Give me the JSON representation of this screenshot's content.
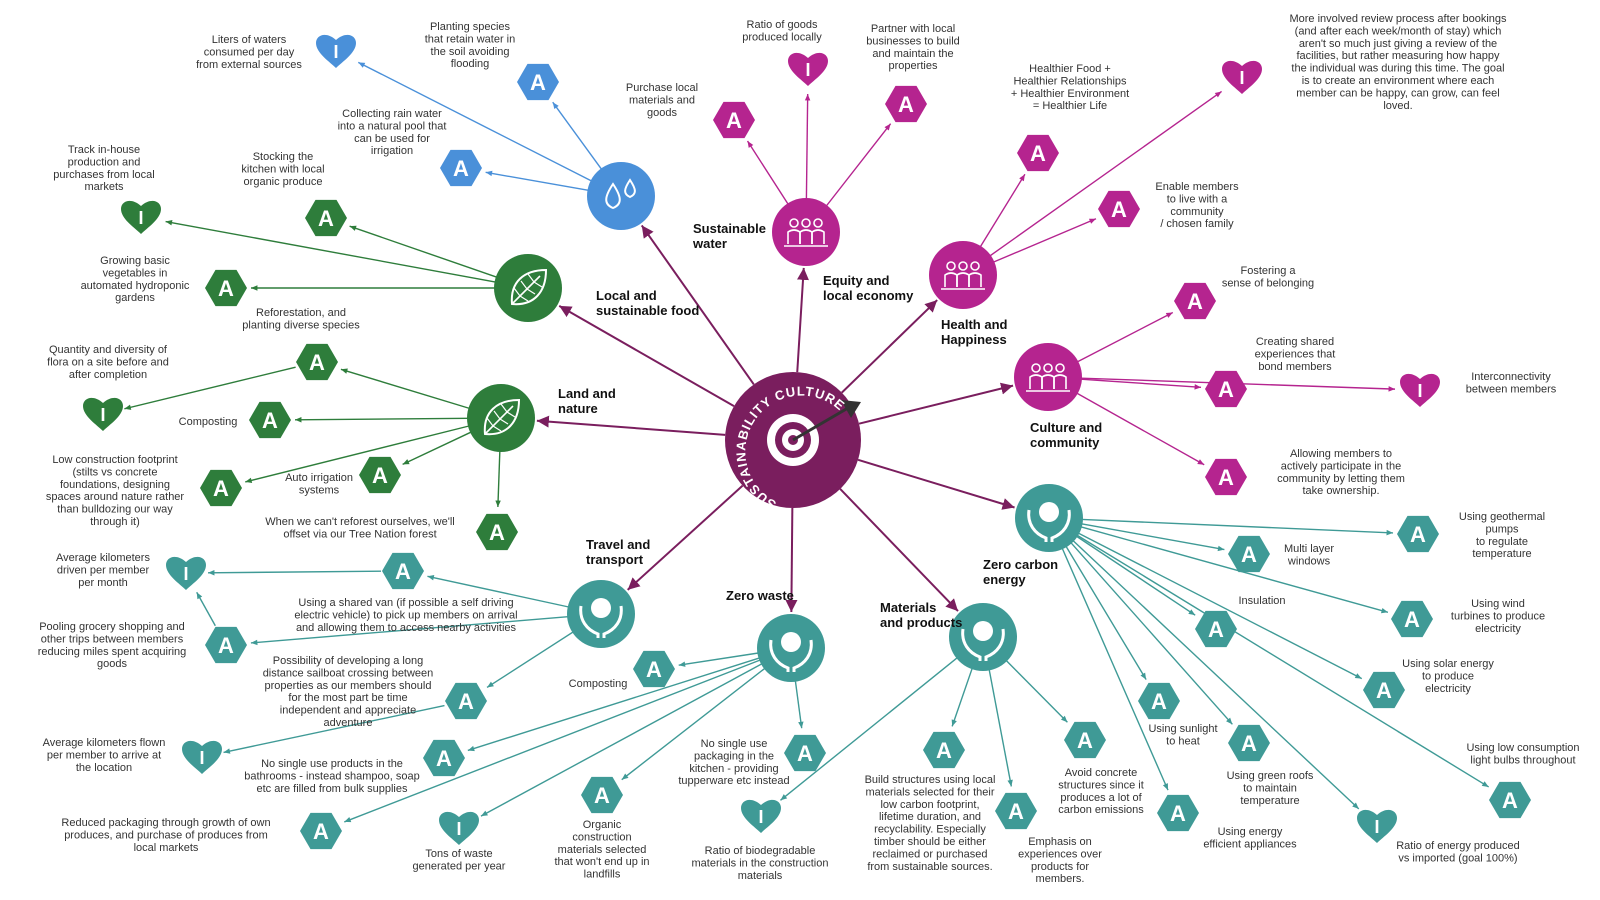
{
  "colors": {
    "water": "#4a90d9",
    "green": "#2e7d3b",
    "magenta": "#b5248f",
    "teal": "#3f9a96",
    "center": "#7a1e5e",
    "arrow_center": "#7a1e5e"
  },
  "center": {
    "title": "SUSTAINABILITY CULTURE",
    "icon": "target-arrow-icon"
  },
  "categories": {
    "water": {
      "label": [
        "Sustainable",
        "water"
      ],
      "icon": "water-drops-icon"
    },
    "food": {
      "label": [
        "Local and",
        "sustainable food"
      ],
      "icon": "leaf-icon"
    },
    "land": {
      "label": [
        "Land and",
        "nature"
      ],
      "icon": "leaf-icon"
    },
    "travel": {
      "label": [
        "Travel and",
        "transport"
      ],
      "icon": "hands-globe-icon"
    },
    "waste": {
      "label": [
        "Zero waste"
      ],
      "icon": "hands-globe-icon"
    },
    "materials": {
      "label": [
        "Materials",
        "and products"
      ],
      "icon": "hands-globe-icon"
    },
    "energy": {
      "label": [
        "Zero carbon",
        "energy"
      ],
      "icon": "hands-globe-icon"
    },
    "equity": {
      "label": [
        "Equity and",
        "local economy"
      ],
      "icon": "people-group-icon"
    },
    "health": {
      "label": [
        "Health and",
        "Happiness"
      ],
      "icon": "people-group-icon"
    },
    "culture": {
      "label": [
        "Culture and",
        "community"
      ],
      "icon": "people-group-icon"
    }
  },
  "labels": {
    "w1": [
      "Liters of waters",
      "consumed per day",
      "from external sources"
    ],
    "w2": [
      "Planting species",
      "that retain water in",
      "the soil avoiding",
      "flooding"
    ],
    "w3": [
      "Collecting rain water",
      "into a natural pool that",
      "can be used for",
      "irrigation"
    ],
    "f1": [
      "Track in-house",
      "production and",
      "purchases from local",
      "markets"
    ],
    "f2": [
      "Stocking the",
      "kitchen with local",
      "organic produce"
    ],
    "f3": [
      "Growing basic",
      "vegetables in",
      "automated hydroponic",
      "gardens"
    ],
    "l1": [
      "Reforestation, and",
      "planting diverse species"
    ],
    "l2": [
      "Quantity and diversity of",
      "flora on a site before and",
      "after completion"
    ],
    "l3": [
      "Composting"
    ],
    "l4": [
      "Low construction footprint",
      "(stilts vs concrete",
      "foundations, designing",
      "spaces around nature rather",
      "than bulldozing our way",
      "through it)"
    ],
    "l5": [
      "Auto irrigation",
      "systems"
    ],
    "l6": [
      "When we can't reforest ourselves, we'll",
      "offset via our Tree Nation forest"
    ],
    "t1": [
      "Average kilometers",
      "driven per member",
      "per month"
    ],
    "t2": [
      "Using a shared van (if possible a self driving",
      "electric vehicle) to pick up members on arrival",
      "and allowing them to access nearby activities"
    ],
    "t3": [
      "Pooling grocery shopping and",
      "other trips between members",
      "reducing miles spent acquiring",
      "goods"
    ],
    "t4": [
      "Possibility of developing a long",
      "distance sailboat crossing between",
      "properties as our members should",
      "for the most part be time",
      "independent and appreciate",
      "adventure"
    ],
    "t5": [
      "Average kilometers flown",
      "per member to arrive at",
      "the location"
    ],
    "z1": [
      "Composting"
    ],
    "z2": [
      "No single use products in the",
      "bathrooms - instead shampoo, soap",
      "etc are filled from bulk supplies"
    ],
    "z3": [
      "Reduced packaging through growth of own",
      "produces, and purchase of produces from",
      "local markets"
    ],
    "z4": [
      "Tons of waste",
      "generated per year"
    ],
    "z5": [
      "Organic",
      "construction",
      "materials selected",
      "that won't end up in",
      "landfills"
    ],
    "z6": [
      "No single use",
      "packaging in the",
      "kitchen - providing",
      "tupperware etc instead"
    ],
    "m1": [
      "Ratio of biodegradable",
      "materials in the construction",
      "materials"
    ],
    "m2": [
      "Build structures using local",
      "materials selected for their",
      "low carbon footprint,",
      "lifetime duration, and",
      "recyclability. Especially",
      "timber should be either",
      "reclaimed or purchased",
      "from sustainable sources."
    ],
    "m3": [
      "Emphasis on",
      "experiences over",
      "products for",
      "members."
    ],
    "m4": [
      "Avoid concrete",
      "structures since it",
      "produces a lot of",
      "carbon emissions"
    ],
    "e1": [
      "Using geothermal",
      "pumps",
      "to regulate",
      "temperature"
    ],
    "e2": [
      "Multi layer",
      "windows"
    ],
    "e3": [
      "Insulation"
    ],
    "e4": [
      "Using wind",
      "turbines to produce",
      "electricity"
    ],
    "e5": [
      "Using solar energy",
      "to produce",
      "electricity"
    ],
    "e6": [
      "Using sunlight",
      "to heat"
    ],
    "e7": [
      "Using green roofs",
      "to maintain",
      "temperature"
    ],
    "e8": [
      "Using energy",
      "efficient appliances"
    ],
    "e9": [
      "Using low consumption",
      "light bulbs throughout"
    ],
    "e10": [
      "Ratio of energy produced",
      "vs imported (goal 100%)"
    ],
    "q1": [
      "Ratio of goods",
      "produced locally"
    ],
    "q2": [
      "Partner with local",
      "businesses to build",
      "and maintain the",
      "properties"
    ],
    "q3": [
      "Purchase local",
      "materials and",
      "goods"
    ],
    "h1": [
      "Healthier Food +",
      "Healthier Relationships",
      "+ Healthier Environment",
      "= Healthier Life"
    ],
    "h2": [
      "More involved review process after bookings",
      "(and after each week/month of stay) which",
      "aren't so much just giving a review of the",
      "facilities, but rather measuring how happy",
      "the individual was during this time. The goal",
      "is to create an environment where each",
      "member can be happy, can grow, can feel",
      "loved."
    ],
    "h3": [
      "Enable members",
      "to live with a",
      "community",
      "/ chosen family"
    ],
    "c1": [
      "Fostering a",
      "sense of belonging"
    ],
    "c2": [
      "Creating shared",
      "experiences that",
      "bond members"
    ],
    "c3": [
      "Interconnectivity",
      "between members"
    ],
    "c4": [
      "Allowing members to",
      "actively participate in the",
      "community by letting them",
      "take ownership."
    ]
  },
  "badges": {
    "action": "A",
    "indicator": "I"
  }
}
